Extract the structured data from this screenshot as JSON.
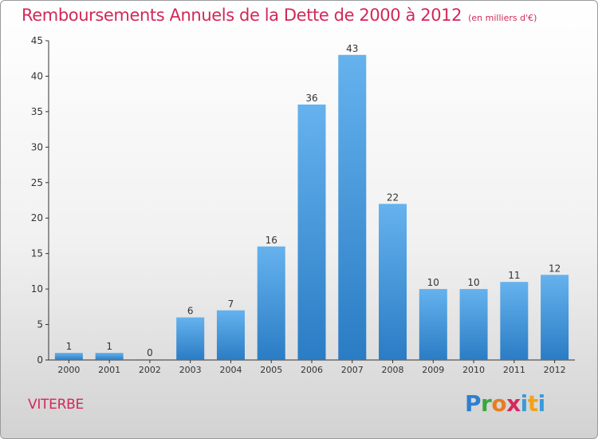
{
  "header": {
    "title": "Remboursements Annuels de la Dette de 2000 à 2012",
    "unit": "(en milliers d'€)"
  },
  "footer": {
    "city": "VITERBE",
    "logo": "Proxiti"
  },
  "colors": {
    "title": "#d2285a",
    "bar_top": "#65b2ee",
    "bar_bottom": "#2a7cc4",
    "axis": "#333333"
  },
  "chart_data": {
    "type": "bar",
    "title": "Remboursements Annuels de la Dette de 2000 à 2012",
    "xlabel": "",
    "ylabel": "",
    "categories": [
      "2000",
      "2001",
      "2002",
      "2003",
      "2004",
      "2005",
      "2006",
      "2007",
      "2008",
      "2009",
      "2010",
      "2011",
      "2012"
    ],
    "values": [
      1,
      1,
      0,
      6,
      7,
      16,
      36,
      43,
      22,
      10,
      10,
      11,
      12
    ],
    "ylim": [
      0,
      45
    ],
    "yticks": [
      0,
      5,
      10,
      15,
      20,
      25,
      30,
      35,
      40,
      45
    ],
    "grid": false,
    "legend": "none"
  }
}
